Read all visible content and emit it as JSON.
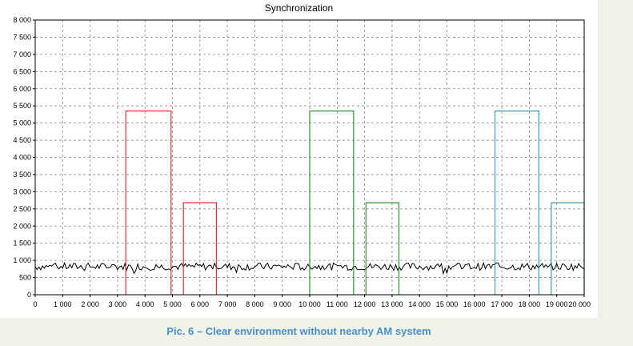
{
  "title": "Synchronization",
  "caption": "Pic. 6 – Clear environment without nearby AM system",
  "chart_data": {
    "type": "line",
    "title": "Synchronization",
    "xlabel": "",
    "ylabel": "",
    "xlim": [
      0,
      20000
    ],
    "ylim": [
      0,
      8000
    ],
    "x_ticks": [
      0,
      1000,
      2000,
      3000,
      4000,
      5000,
      6000,
      7000,
      8000,
      9000,
      10000,
      11000,
      12000,
      13000,
      14000,
      15000,
      16000,
      17000,
      18000,
      19000,
      20000
    ],
    "x_tick_labels": [
      "0",
      "1 000",
      "2 000",
      "3 000",
      "4 000",
      "5 000",
      "6 000",
      "7 000",
      "8 000",
      "9 000",
      "10 000",
      "11 000",
      "12 000",
      "13 000",
      "14 000",
      "15 000",
      "16 000",
      "17 000",
      "18 000",
      "19 000",
      "20 000"
    ],
    "y_ticks": [
      0,
      500,
      1000,
      1500,
      2000,
      2500,
      3000,
      3500,
      4000,
      4500,
      5000,
      5500,
      6000,
      6500,
      7000,
      7500,
      8000
    ],
    "y_tick_labels": [
      "0",
      "500",
      "1 000",
      "1 500",
      "2 000",
      "2 500",
      "3 000",
      "3 500",
      "4 000",
      "4 500",
      "5 000",
      "5 500",
      "6 000",
      "6 500",
      "7 000",
      "7 500",
      "8 000"
    ],
    "grid": true,
    "legend": "none",
    "series": [
      {
        "color": "#000000",
        "kind": "noise",
        "baseline": 820,
        "range": [
          600,
          1000
        ]
      },
      {
        "color": "#e03030",
        "kind": "pulses",
        "pulses": [
          {
            "x_start": 3300,
            "x_end": 4950,
            "height": 5350
          },
          {
            "x_start": 5400,
            "x_end": 6600,
            "height": 2680
          }
        ]
      },
      {
        "color": "#2a9a2a",
        "kind": "pulses",
        "pulses": [
          {
            "x_start": 10000,
            "x_end": 11600,
            "height": 5350
          },
          {
            "x_start": 12050,
            "x_end": 13250,
            "height": 2680
          }
        ]
      },
      {
        "color": "#3a9bc0",
        "kind": "pulses",
        "pulses": [
          {
            "x_start": 16750,
            "x_end": 18350,
            "height": 5350
          },
          {
            "x_start": 18800,
            "x_end": 20000,
            "height": 2680
          }
        ]
      }
    ]
  }
}
